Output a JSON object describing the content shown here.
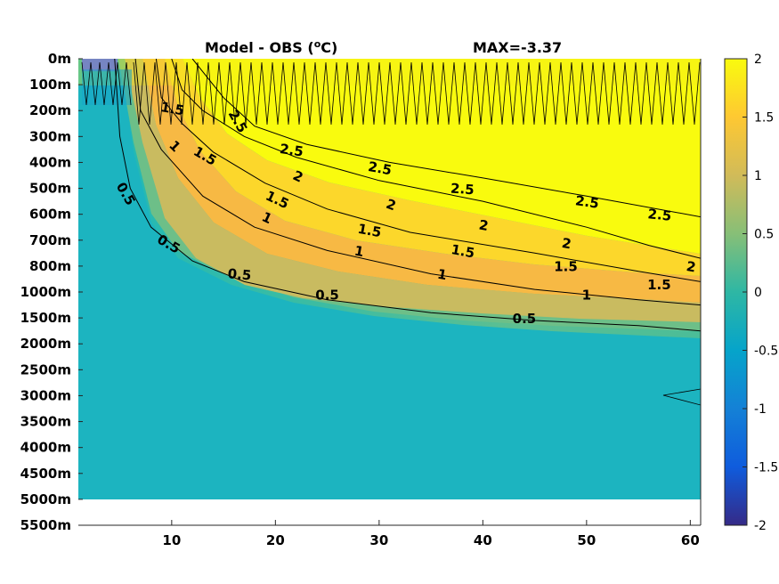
{
  "chart_data": {
    "type": "heatmap",
    "title": "Model - OBS (",
    "title_unit_sup": "o",
    "title_unit_tail": "C)",
    "max_text": "MAX=-3.37",
    "xlabel": "",
    "ylabel": "",
    "x_ticks": [
      10,
      20,
      30,
      40,
      50,
      60
    ],
    "xlim": [
      1,
      61
    ],
    "y_tick_labels": [
      "0m",
      "100m",
      "200m",
      "300m",
      "400m",
      "500m",
      "600m",
      "700m",
      "800m",
      "1000m",
      "1500m",
      "2000m",
      "2500m",
      "3000m",
      "3500m",
      "4000m",
      "4500m",
      "5000m",
      "5500m"
    ],
    "data_depth_extent": "5000m",
    "colorbar": {
      "range": [
        -2,
        2
      ],
      "ticks": [
        "2",
        "1.5",
        "1",
        "0.5",
        "0",
        "-0.5",
        "-1",
        "-1.5",
        "-2"
      ],
      "colormap": "parula",
      "stops": [
        "#352a87",
        "#0f5cdd",
        "#1481d6",
        "#06a4ca",
        "#2eb7a4",
        "#87bf77",
        "#d1bb59",
        "#fec832",
        "#f9fb0e"
      ]
    },
    "contour_levels": [
      0.5,
      1,
      1.5,
      2,
      2.5
    ],
    "contours": [
      {
        "level": 0.5,
        "label": "0.5",
        "points": [
          [
            4.5,
            0
          ],
          [
            5,
            3
          ],
          [
            6,
            5
          ],
          [
            8,
            6.5
          ],
          [
            12,
            7.8
          ],
          [
            17,
            8.6
          ],
          [
            25,
            9.3
          ],
          [
            35,
            9.8
          ],
          [
            45,
            10.1
          ],
          [
            55,
            10.3
          ],
          [
            61,
            10.5
          ]
        ]
      },
      {
        "level": 1,
        "label": "1",
        "points": [
          [
            6.5,
            0
          ],
          [
            7,
            2
          ],
          [
            9,
            3.5
          ],
          [
            13,
            5.3
          ],
          [
            18,
            6.5
          ],
          [
            25,
            7.4
          ],
          [
            35,
            8.3
          ],
          [
            45,
            8.9
          ],
          [
            55,
            9.3
          ],
          [
            61,
            9.5
          ]
        ]
      },
      {
        "level": 1.5,
        "label": "1.5",
        "points": [
          [
            8.5,
            0
          ],
          [
            9,
            1.5
          ],
          [
            11,
            2.5
          ],
          [
            14,
            3.6
          ],
          [
            19,
            4.8
          ],
          [
            25,
            5.8
          ],
          [
            33,
            6.7
          ],
          [
            45,
            7.5
          ],
          [
            55,
            8.2
          ],
          [
            61,
            8.6
          ]
        ]
      },
      {
        "level": 2,
        "label": "2",
        "points": [
          [
            10,
            0
          ],
          [
            11,
            1.2
          ],
          [
            13,
            2
          ],
          [
            17,
            3
          ],
          [
            22,
            3.8
          ],
          [
            30,
            4.7
          ],
          [
            40,
            5.5
          ],
          [
            50,
            6.5
          ],
          [
            56,
            7.2
          ],
          [
            61,
            7.7
          ]
        ]
      },
      {
        "level": 2.5,
        "label": "2.5",
        "points": [
          [
            12,
            0
          ],
          [
            15,
            1.5
          ],
          [
            18,
            2.6
          ],
          [
            23,
            3.3
          ],
          [
            31,
            4
          ],
          [
            40,
            4.6
          ],
          [
            50,
            5.3
          ],
          [
            61,
            6.1
          ]
        ]
      }
    ],
    "contour_labels": [
      {
        "text": "2.5",
        "x": 21.5,
        "y": 3.7,
        "angle": 8
      },
      {
        "text": "2.5",
        "x": 30,
        "y": 4.4,
        "angle": 10
      },
      {
        "text": "2.5",
        "x": 38,
        "y": 5.2,
        "angle": 4
      },
      {
        "text": "2.5",
        "x": 50,
        "y": 5.7,
        "angle": 8
      },
      {
        "text": "2.5",
        "x": 57,
        "y": 6.2,
        "angle": 6
      },
      {
        "text": "2",
        "x": 22,
        "y": 4.7,
        "angle": 25
      },
      {
        "text": "2",
        "x": 31,
        "y": 5.8,
        "angle": 20
      },
      {
        "text": "2",
        "x": 40,
        "y": 6.6,
        "angle": 10
      },
      {
        "text": "2",
        "x": 48,
        "y": 7.3,
        "angle": 10
      },
      {
        "text": "2",
        "x": 60,
        "y": 8.2,
        "angle": 10
      },
      {
        "text": "1.5",
        "x": 13,
        "y": 3.9,
        "angle": 30
      },
      {
        "text": "1.5",
        "x": 20,
        "y": 5.6,
        "angle": 25
      },
      {
        "text": "1.5",
        "x": 29,
        "y": 6.8,
        "angle": 10
      },
      {
        "text": "1.5",
        "x": 38,
        "y": 7.6,
        "angle": 10
      },
      {
        "text": "1.5",
        "x": 48,
        "y": 8.2,
        "angle": 0
      },
      {
        "text": "1.5",
        "x": 57,
        "y": 8.9,
        "angle": 0
      },
      {
        "text": "1",
        "x": 10,
        "y": 3.5,
        "angle": 45
      },
      {
        "text": "1",
        "x": 19,
        "y": 6.3,
        "angle": 25
      },
      {
        "text": "1",
        "x": 28,
        "y": 7.6,
        "angle": 10
      },
      {
        "text": "1",
        "x": 36,
        "y": 8.5,
        "angle": 10
      },
      {
        "text": "1",
        "x": 50,
        "y": 9.3,
        "angle": 0
      },
      {
        "text": "0.5",
        "x": 9.5,
        "y": 7.3,
        "angle": 30
      },
      {
        "text": "0.5",
        "x": 16.5,
        "y": 8.5,
        "angle": 5
      },
      {
        "text": "0.5",
        "x": 25,
        "y": 9.3,
        "angle": 0
      },
      {
        "text": "0.5",
        "x": 44,
        "y": 10.2,
        "angle": 0
      },
      {
        "text": "0.5",
        "x": 5.2,
        "y": 5.3,
        "angle": 60
      },
      {
        "text": "2.5",
        "x": 16,
        "y": 2.5,
        "angle": 60
      },
      {
        "text": "1.5",
        "x": 10,
        "y": 2.1,
        "angle": 10
      }
    ]
  }
}
